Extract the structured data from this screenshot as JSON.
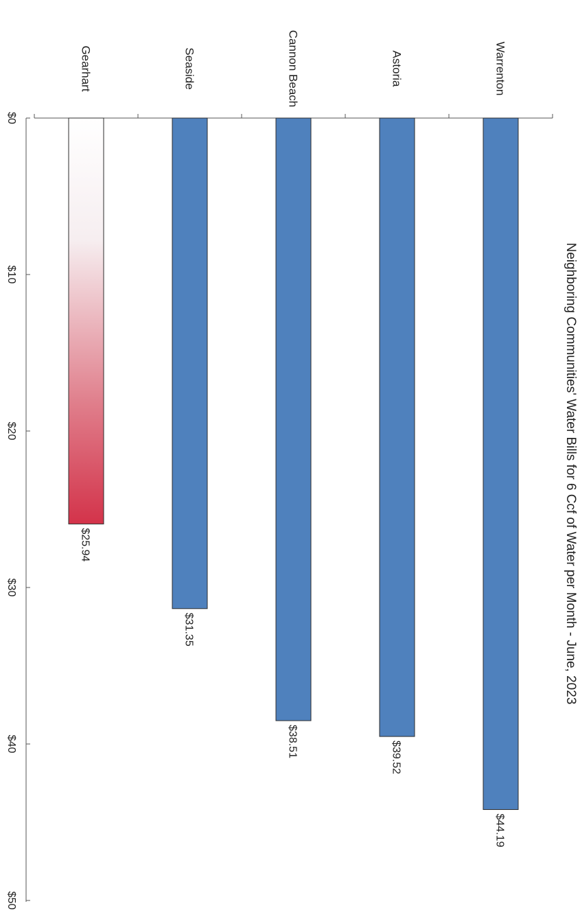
{
  "chart_data": {
    "type": "bar",
    "title": "Neighboring Communities' Water Bills for 6 Ccf of Water per Month - June, 2023",
    "categories": [
      "Gearhart",
      "Seaside",
      "Cannon Beach",
      "Astoria",
      "Warrenton"
    ],
    "values": [
      25.94,
      31.35,
      38.51,
      39.52,
      44.19
    ],
    "data_labels": [
      "$25.94",
      "$31.35",
      "$38.51",
      "$39.52",
      "$44.19"
    ],
    "ticks": [
      0,
      10,
      20,
      30,
      40,
      50
    ],
    "tick_labels": [
      "$0",
      "$10",
      "$20",
      "$30",
      "$40",
      "$50"
    ],
    "ylim": [
      0,
      50
    ],
    "xlabel": "",
    "ylabel": "",
    "grid": false,
    "legend": "none",
    "colors": {
      "bar": "#4f81bd",
      "bar_outline": "#2c2c2c",
      "highlight_top": "#ffffff",
      "highlight_bottom": "#d3334a"
    },
    "highlighted_category": "Gearhart"
  }
}
